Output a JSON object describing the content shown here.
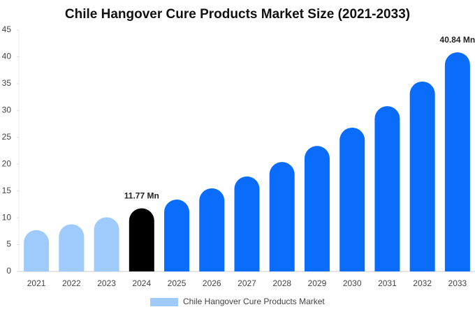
{
  "chart_data": {
    "type": "bar",
    "title": "Chile Hangover Cure Products Market Size (2021-2033)",
    "categories": [
      "2021",
      "2022",
      "2023",
      "2024",
      "2025",
      "2026",
      "2027",
      "2028",
      "2029",
      "2030",
      "2031",
      "2032",
      "2033"
    ],
    "series": [
      {
        "name": "Chile Hangover Cure Products Market",
        "color": "#9ecbfb",
        "values": [
          7.7,
          8.8,
          10.1,
          11.77,
          13.4,
          15.5,
          17.7,
          20.4,
          23.4,
          26.8,
          30.8,
          35.4,
          40.84
        ],
        "value_labels": [
          null,
          null,
          null,
          "11.77 Mn",
          null,
          null,
          null,
          null,
          null,
          null,
          null,
          null,
          "40.84 Mn"
        ],
        "colors": [
          "#9ecbfb",
          "#9ecbfb",
          "#9ecbfb",
          "#000000",
          "#0a6cfb",
          "#0a6cfb",
          "#0a6cfb",
          "#0a6cfb",
          "#0a6cfb",
          "#0a6cfb",
          "#0a6cfb",
          "#0a6cfb",
          "#0a6cfb"
        ]
      }
    ],
    "ylim": [
      0,
      45
    ],
    "yticks": [
      0,
      5,
      10,
      15,
      20,
      25,
      30,
      35,
      40,
      45
    ]
  }
}
